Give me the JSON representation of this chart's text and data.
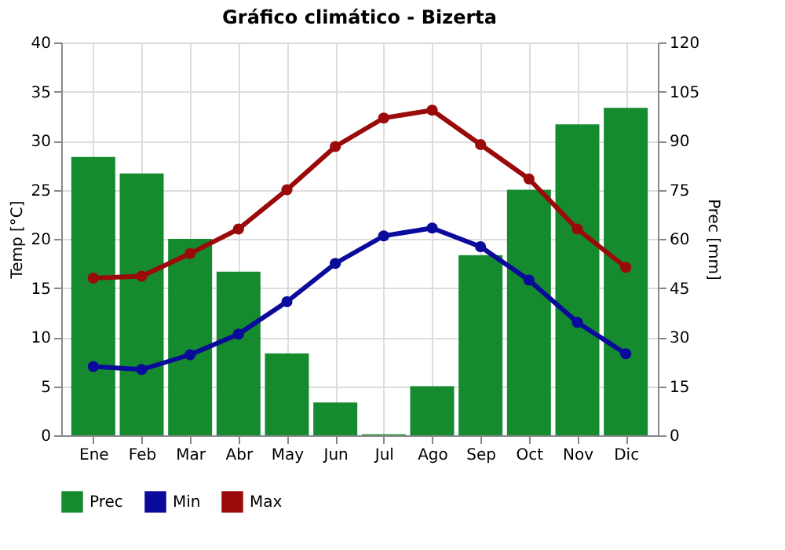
{
  "chart_data": {
    "type": "line",
    "title": "Gráfico climático - Bizerta",
    "ylabel": "Temp [°C]",
    "y2label": "Prec [mm]",
    "categories": [
      "Ene",
      "Feb",
      "Mar",
      "Abr",
      "May",
      "Jun",
      "Jul",
      "Ago",
      "Sep",
      "Oct",
      "Nov",
      "Dic"
    ],
    "series": [
      {
        "name": "Prec",
        "type": "bar",
        "axis": "y2",
        "color": "#168a2e",
        "values": [
          85,
          80,
          60,
          50,
          25,
          10,
          0.3,
          15,
          55,
          75,
          95,
          100
        ]
      },
      {
        "name": "Min",
        "color": "#0a0a9b",
        "values": [
          7.0,
          6.7,
          8.2,
          10.3,
          13.6,
          17.5,
          20.3,
          21.1,
          19.2,
          15.8,
          11.5,
          8.3
        ]
      },
      {
        "name": "Max",
        "color": "#9b0a0a",
        "values": [
          16.0,
          16.2,
          18.5,
          21.0,
          25.0,
          29.4,
          32.3,
          33.1,
          29.6,
          26.1,
          21.0,
          17.1
        ]
      }
    ],
    "ylim": [
      0,
      40
    ],
    "yticks": [
      0,
      5,
      10,
      15,
      20,
      25,
      30,
      35,
      40
    ],
    "y2lim": [
      0,
      120
    ],
    "y2ticks": [
      0,
      15,
      30,
      45,
      60,
      75,
      90,
      105,
      120
    ],
    "grid": true,
    "legend": "bottom",
    "marker": "circle",
    "line_style": "solid"
  }
}
